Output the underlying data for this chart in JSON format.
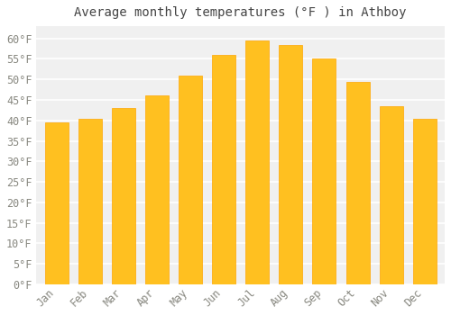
{
  "title": "Average monthly temperatures (°F ) in Athboy",
  "months": [
    "Jan",
    "Feb",
    "Mar",
    "Apr",
    "May",
    "Jun",
    "Jul",
    "Aug",
    "Sep",
    "Oct",
    "Nov",
    "Dec"
  ],
  "values": [
    39.5,
    40.5,
    43,
    46,
    51,
    56,
    59.5,
    58.5,
    55,
    49.5,
    43.5,
    40.5
  ],
  "bar_color_face": "#FFC020",
  "bar_color_edge": "#FFA500",
  "fig_background": "#FFFFFF",
  "plot_background": "#F0F0F0",
  "grid_color": "#FFFFFF",
  "text_color": "#888880",
  "title_color": "#444444",
  "ylim": [
    0,
    63
  ],
  "yticks": [
    0,
    5,
    10,
    15,
    20,
    25,
    30,
    35,
    40,
    45,
    50,
    55,
    60
  ],
  "title_fontsize": 10,
  "tick_fontsize": 8.5,
  "bar_width": 0.7
}
